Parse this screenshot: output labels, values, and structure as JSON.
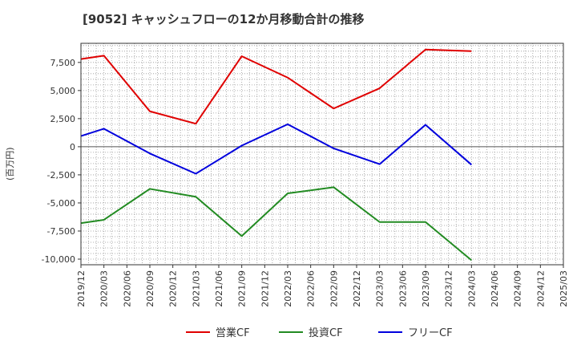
{
  "chart_data": {
    "type": "line",
    "title": "[9052]  キャッシュフローの12か月移動合計の推移",
    "ylabel": "(百万円)",
    "xlabel": "",
    "ylim": [
      -10500,
      9200
    ],
    "yticks": [
      7500,
      5000,
      2500,
      0,
      -2500,
      -5000,
      -7500,
      -10000
    ],
    "ytick_labels": [
      "7,500",
      "5,000",
      "2,500",
      "0",
      "-2,500",
      "-5,000",
      "-7,500",
      "-10,000"
    ],
    "categories": [
      "2019/12",
      "2020/03",
      "2020/06",
      "2020/09",
      "2020/12",
      "2021/03",
      "2021/06",
      "2021/09",
      "2021/12",
      "2022/03",
      "2022/06",
      "2022/09",
      "2022/12",
      "2023/03",
      "2023/06",
      "2023/09",
      "2023/12",
      "2024/03",
      "2024/06",
      "2024/09",
      "2024/12",
      "2025/03"
    ],
    "grid": true,
    "legend_position": "bottom",
    "series": [
      {
        "name": "営業CF",
        "color": "#e00000",
        "points": [
          [
            "2019/12",
            7800
          ],
          [
            "2020/03",
            8100
          ],
          [
            "2020/09",
            3150
          ],
          [
            "2021/03",
            2050
          ],
          [
            "2021/09",
            8050
          ],
          [
            "2022/03",
            6150
          ],
          [
            "2022/09",
            3400
          ],
          [
            "2023/03",
            5200
          ],
          [
            "2023/09",
            8650
          ],
          [
            "2024/03",
            8500
          ]
        ]
      },
      {
        "name": "投資CF",
        "color": "#228b22",
        "points": [
          [
            "2019/12",
            -6800
          ],
          [
            "2020/03",
            -6500
          ],
          [
            "2020/09",
            -3750
          ],
          [
            "2021/03",
            -4450
          ],
          [
            "2021/09",
            -7950
          ],
          [
            "2022/03",
            -4150
          ],
          [
            "2022/09",
            -3600
          ],
          [
            "2023/03",
            -6700
          ],
          [
            "2023/09",
            -6700
          ],
          [
            "2024/03",
            -10100
          ]
        ]
      },
      {
        "name": "フリーCF",
        "color": "#0000dd",
        "points": [
          [
            "2019/12",
            950
          ],
          [
            "2020/03",
            1600
          ],
          [
            "2020/09",
            -600
          ],
          [
            "2021/03",
            -2400
          ],
          [
            "2021/09",
            100
          ],
          [
            "2022/03",
            2000
          ],
          [
            "2022/09",
            -150
          ],
          [
            "2023/03",
            -1550
          ],
          [
            "2023/09",
            1950
          ],
          [
            "2024/03",
            -1600
          ]
        ]
      }
    ]
  }
}
